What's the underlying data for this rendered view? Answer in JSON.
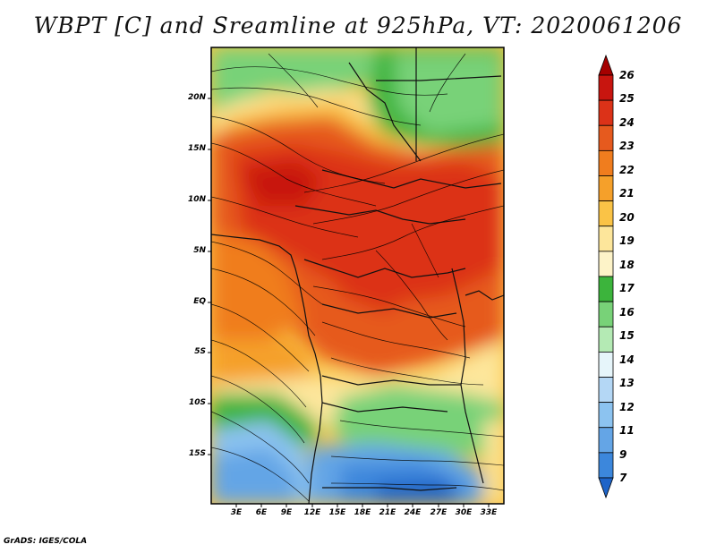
{
  "title": "WBPT [C] and Sreamline at 925hPa, VT: 2020061206",
  "credit": "GrADS: IGES/COLA",
  "lat_labels": [
    "20N",
    "15N",
    "10N",
    "5N",
    "EQ",
    "5S",
    "10S",
    "15S"
  ],
  "lon_labels": [
    "3E",
    "6E",
    "9E",
    "12E",
    "15E",
    "18E",
    "21E",
    "24E",
    "27E",
    "30E",
    "33E"
  ],
  "colorbar": {
    "levels": [
      "26",
      "25",
      "24",
      "23",
      "22",
      "21",
      "20",
      "19",
      "18",
      "17",
      "16",
      "15",
      "14",
      "13",
      "12",
      "11",
      "9",
      "7"
    ],
    "colors": [
      "#a50000",
      "#c8150f",
      "#dc3218",
      "#e65a1e",
      "#f07d1e",
      "#f5a02a",
      "#fac346",
      "#fde69b",
      "#fdf3c8",
      "#3cb43c",
      "#78d278",
      "#b4eab4",
      "#e6f5fa",
      "#b4d7f5",
      "#8cc3f0",
      "#64a5e6",
      "#3c87dc",
      "#1e64c8"
    ]
  },
  "fields": {
    "variable": "Wet-bulb potential temperature",
    "unit": "C",
    "level": "925hPa",
    "valid_time": "2020061206"
  }
}
